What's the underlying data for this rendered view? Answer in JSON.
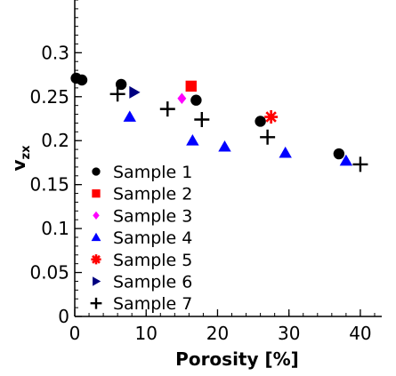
{
  "chart_data": {
    "type": "scatter",
    "title": "",
    "xlabel": "Porosity [%]",
    "ylabel": "v",
    "ylabel_subscript": "zx",
    "xlim": [
      0,
      43
    ],
    "ylim": [
      0,
      0.36
    ],
    "x_ticks": [
      0,
      10,
      20,
      30,
      40
    ],
    "y_ticks": [
      0,
      0.05,
      0.1,
      0.15,
      0.2,
      0.25,
      0.3
    ],
    "y_tick_labels": [
      "0",
      "0.05",
      "0.1",
      "0.15",
      "0.2",
      "0.25",
      "0.3"
    ],
    "grid": false,
    "legend_position": "lower-left",
    "series": [
      {
        "name": "Sample 1",
        "marker": "circle",
        "color": "#000000",
        "points": [
          [
            0.2,
            0.271
          ],
          [
            1.0,
            0.269
          ],
          [
            6.5,
            0.264
          ],
          [
            17.0,
            0.246
          ],
          [
            26.0,
            0.222
          ],
          [
            37.0,
            0.185
          ]
        ]
      },
      {
        "name": "Sample 2",
        "marker": "square",
        "color": "#ff0000",
        "points": [
          [
            16.3,
            0.262
          ]
        ]
      },
      {
        "name": "Sample 3",
        "marker": "diamond",
        "color": "#ff00ff",
        "points": [
          [
            15.0,
            0.248
          ]
        ]
      },
      {
        "name": "Sample 4",
        "marker": "triangle-up",
        "color": "#0000ff",
        "points": [
          [
            7.7,
            0.227
          ],
          [
            16.5,
            0.2
          ],
          [
            21.0,
            0.193
          ],
          [
            29.5,
            0.186
          ],
          [
            38.0,
            0.177
          ]
        ]
      },
      {
        "name": "Sample 5",
        "marker": "asterisk",
        "color": "#ff0000",
        "points": [
          [
            27.5,
            0.227
          ]
        ]
      },
      {
        "name": "Sample 6",
        "marker": "triangle-right",
        "color": "#000080",
        "points": [
          [
            8.3,
            0.255
          ]
        ]
      },
      {
        "name": "Sample 7",
        "marker": "plus",
        "color": "#000000",
        "points": [
          [
            6.0,
            0.253
          ],
          [
            13.0,
            0.236
          ],
          [
            17.8,
            0.224
          ],
          [
            27.0,
            0.204
          ],
          [
            40.0,
            0.173
          ]
        ]
      }
    ]
  }
}
